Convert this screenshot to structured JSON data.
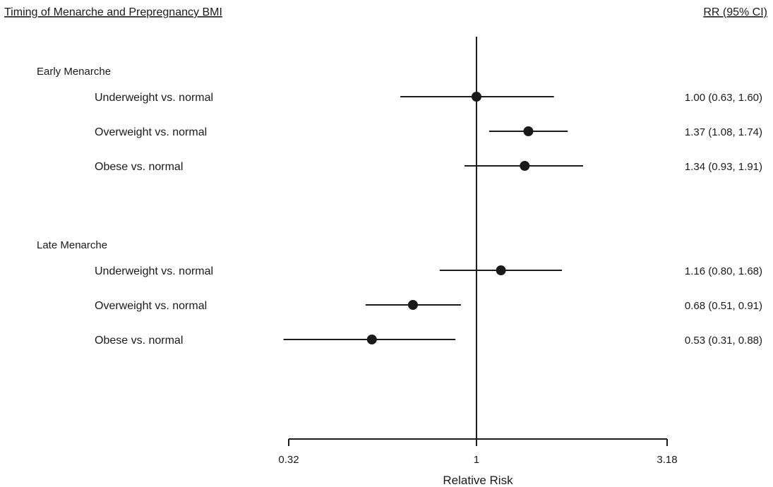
{
  "chart_data": {
    "type": "forest",
    "title": "Timing of Menarche and Prepregnancy BMI",
    "estimate_header": "RR (95% CI)",
    "xlabel": "Relative Risk",
    "x_scale": "log",
    "xlim": [
      0.32,
      3.18
    ],
    "reference_line": 1,
    "x_ticks": [
      {
        "value": 0.32,
        "label": "0.32"
      },
      {
        "value": 1,
        "label": "1"
      },
      {
        "value": 3.18,
        "label": "3.18"
      }
    ],
    "groups": [
      {
        "label": "Early Menarche",
        "rows": [
          {
            "label": "Underweight vs. normal",
            "rr": 1.0,
            "lower": 0.63,
            "upper": 1.6,
            "text": "1.00 (0.63, 1.60)"
          },
          {
            "label": "Overweight vs. normal",
            "rr": 1.37,
            "lower": 1.08,
            "upper": 1.74,
            "text": "1.37 (1.08, 1.74)"
          },
          {
            "label": "Obese vs. normal",
            "rr": 1.34,
            "lower": 0.93,
            "upper": 1.91,
            "text": "1.34 (0.93, 1.91)"
          }
        ]
      },
      {
        "label": "Late Menarche",
        "rows": [
          {
            "label": "Underweight vs. normal",
            "rr": 1.16,
            "lower": 0.8,
            "upper": 1.68,
            "text": "1.16 (0.80, 1.68)"
          },
          {
            "label": "Overweight vs. normal",
            "rr": 0.68,
            "lower": 0.51,
            "upper": 0.91,
            "text": "0.68 (0.51, 0.91)"
          },
          {
            "label": "Obese vs. normal",
            "rr": 0.53,
            "lower": 0.31,
            "upper": 0.88,
            "text": "0.53 (0.31, 0.88)"
          }
        ]
      }
    ],
    "colors": {
      "ink": "#1a1a1a"
    }
  }
}
